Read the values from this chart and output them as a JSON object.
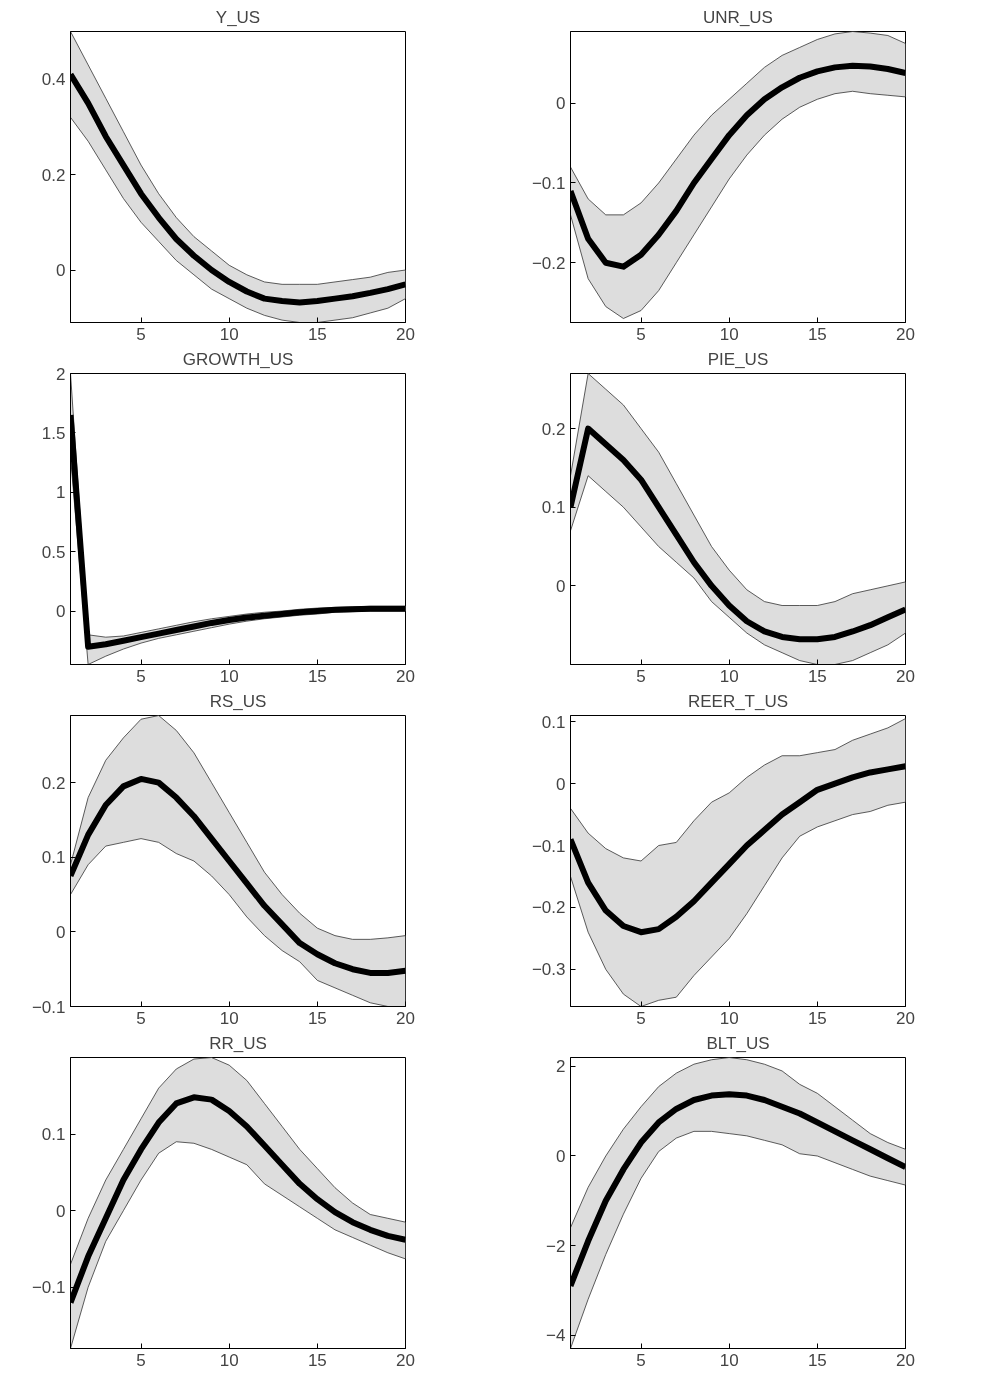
{
  "chart_data": [
    {
      "type": "line",
      "title": "Y_US",
      "x": [
        1,
        2,
        3,
        4,
        5,
        6,
        7,
        8,
        9,
        10,
        11,
        12,
        13,
        14,
        15,
        16,
        17,
        18,
        19,
        20
      ],
      "xlim": [
        1,
        20
      ],
      "xticks": [
        5,
        10,
        15,
        20
      ],
      "ylim": [
        -0.11,
        0.5
      ],
      "yticks": [
        0,
        0.2,
        0.4
      ],
      "grid": false,
      "series": [
        {
          "color": "#000000",
          "values": [
            0.41,
            0.35,
            0.28,
            0.22,
            0.16,
            0.11,
            0.065,
            0.03,
            0.0,
            -0.025,
            -0.045,
            -0.06,
            -0.065,
            -0.068,
            -0.065,
            -0.06,
            -0.055,
            -0.048,
            -0.04,
            -0.03
          ],
          "upper": [
            0.5,
            0.43,
            0.36,
            0.29,
            0.22,
            0.16,
            0.11,
            0.07,
            0.04,
            0.01,
            -0.01,
            -0.025,
            -0.03,
            -0.03,
            -0.03,
            -0.025,
            -0.02,
            -0.015,
            -0.005,
            0.0
          ],
          "lower": [
            0.32,
            0.27,
            0.21,
            0.15,
            0.1,
            0.06,
            0.02,
            -0.01,
            -0.04,
            -0.06,
            -0.08,
            -0.095,
            -0.105,
            -0.11,
            -0.11,
            -0.105,
            -0.1,
            -0.09,
            -0.08,
            -0.06
          ]
        }
      ]
    },
    {
      "type": "line",
      "title": "UNR_US",
      "x": [
        1,
        2,
        3,
        4,
        5,
        6,
        7,
        8,
        9,
        10,
        11,
        12,
        13,
        14,
        15,
        16,
        17,
        18,
        19,
        20
      ],
      "xlim": [
        1,
        20
      ],
      "xticks": [
        5,
        10,
        15,
        20
      ],
      "ylim": [
        -0.275,
        0.09
      ],
      "yticks": [
        -0.2,
        -0.1,
        0
      ],
      "grid": false,
      "series": [
        {
          "color": "#000000",
          "values": [
            -0.11,
            -0.17,
            -0.2,
            -0.205,
            -0.19,
            -0.165,
            -0.135,
            -0.1,
            -0.07,
            -0.04,
            -0.015,
            0.005,
            0.02,
            0.032,
            0.04,
            0.045,
            0.047,
            0.046,
            0.043,
            0.038
          ],
          "upper": [
            -0.08,
            -0.12,
            -0.14,
            -0.14,
            -0.125,
            -0.1,
            -0.07,
            -0.04,
            -0.015,
            0.005,
            0.025,
            0.045,
            0.06,
            0.07,
            0.08,
            0.087,
            0.09,
            0.088,
            0.085,
            0.075
          ],
          "lower": [
            -0.14,
            -0.22,
            -0.255,
            -0.27,
            -0.26,
            -0.235,
            -0.2,
            -0.165,
            -0.13,
            -0.095,
            -0.065,
            -0.04,
            -0.02,
            -0.005,
            0.005,
            0.012,
            0.015,
            0.012,
            0.01,
            0.008
          ]
        }
      ]
    },
    {
      "type": "line",
      "title": "GROWTH_US",
      "x": [
        1,
        2,
        3,
        4,
        5,
        6,
        7,
        8,
        9,
        10,
        11,
        12,
        13,
        14,
        15,
        16,
        17,
        18,
        19,
        20
      ],
      "xlim": [
        1,
        20
      ],
      "xticks": [
        5,
        10,
        15,
        20
      ],
      "ylim": [
        -0.45,
        2
      ],
      "yticks": [
        0,
        0.5,
        1,
        1.5,
        2
      ],
      "grid": false,
      "series": [
        {
          "color": "#000000",
          "values": [
            1.65,
            -0.3,
            -0.28,
            -0.25,
            -0.22,
            -0.19,
            -0.16,
            -0.13,
            -0.1,
            -0.075,
            -0.055,
            -0.04,
            -0.025,
            -0.01,
            0.0,
            0.01,
            0.015,
            0.02,
            0.02,
            0.02
          ],
          "upper": [
            2.0,
            -0.2,
            -0.22,
            -0.21,
            -0.18,
            -0.15,
            -0.12,
            -0.09,
            -0.065,
            -0.045,
            -0.025,
            -0.01,
            0.0,
            0.015,
            0.025,
            0.03,
            0.035,
            0.04,
            0.04,
            0.04
          ],
          "lower": [
            1.3,
            -0.45,
            -0.38,
            -0.32,
            -0.27,
            -0.23,
            -0.2,
            -0.17,
            -0.14,
            -0.11,
            -0.085,
            -0.065,
            -0.05,
            -0.035,
            -0.025,
            -0.01,
            -0.005,
            0.0,
            0.0,
            0.0
          ]
        }
      ]
    },
    {
      "type": "line",
      "title": "PIE_US",
      "x": [
        1,
        2,
        3,
        4,
        5,
        6,
        7,
        8,
        9,
        10,
        11,
        12,
        13,
        14,
        15,
        16,
        17,
        18,
        19,
        20
      ],
      "xlim": [
        1,
        20
      ],
      "xticks": [
        5,
        10,
        15,
        20
      ],
      "ylim": [
        -0.1,
        0.27
      ],
      "yticks": [
        0,
        0.1,
        0.2
      ],
      "grid": false,
      "series": [
        {
          "color": "#000000",
          "values": [
            0.1,
            0.2,
            0.18,
            0.16,
            0.135,
            0.1,
            0.065,
            0.03,
            0.0,
            -0.025,
            -0.045,
            -0.058,
            -0.065,
            -0.068,
            -0.068,
            -0.065,
            -0.058,
            -0.05,
            -0.04,
            -0.03
          ],
          "upper": [
            0.14,
            0.27,
            0.25,
            0.23,
            0.2,
            0.17,
            0.13,
            0.09,
            0.05,
            0.02,
            -0.005,
            -0.02,
            -0.025,
            -0.025,
            -0.025,
            -0.02,
            -0.01,
            -0.005,
            0.0,
            0.005
          ],
          "lower": [
            0.07,
            0.14,
            0.12,
            0.1,
            0.075,
            0.05,
            0.03,
            0.01,
            -0.02,
            -0.04,
            -0.06,
            -0.075,
            -0.085,
            -0.095,
            -0.1,
            -0.1,
            -0.095,
            -0.085,
            -0.075,
            -0.06
          ]
        }
      ]
    },
    {
      "type": "line",
      "title": "RS_US",
      "x": [
        1,
        2,
        3,
        4,
        5,
        6,
        7,
        8,
        9,
        10,
        11,
        12,
        13,
        14,
        15,
        16,
        17,
        18,
        19,
        20
      ],
      "xlim": [
        1,
        20
      ],
      "xticks": [
        5,
        10,
        15,
        20
      ],
      "ylim": [
        -0.1,
        0.29
      ],
      "yticks": [
        -0.1,
        0,
        0.1,
        0.2
      ],
      "grid": false,
      "series": [
        {
          "color": "#000000",
          "values": [
            0.075,
            0.13,
            0.17,
            0.195,
            0.205,
            0.2,
            0.18,
            0.155,
            0.125,
            0.095,
            0.065,
            0.035,
            0.01,
            -0.015,
            -0.03,
            -0.042,
            -0.05,
            -0.055,
            -0.055,
            -0.052
          ],
          "upper": [
            0.09,
            0.18,
            0.23,
            0.26,
            0.285,
            0.29,
            0.27,
            0.24,
            0.2,
            0.16,
            0.12,
            0.08,
            0.05,
            0.025,
            0.005,
            -0.005,
            -0.01,
            -0.01,
            -0.008,
            -0.005
          ],
          "lower": [
            0.05,
            0.09,
            0.115,
            0.12,
            0.125,
            0.12,
            0.105,
            0.095,
            0.075,
            0.05,
            0.02,
            -0.005,
            -0.025,
            -0.04,
            -0.065,
            -0.075,
            -0.085,
            -0.095,
            -0.1,
            -0.1
          ]
        }
      ]
    },
    {
      "type": "line",
      "title": "REER_T_US",
      "x": [
        1,
        2,
        3,
        4,
        5,
        6,
        7,
        8,
        9,
        10,
        11,
        12,
        13,
        14,
        15,
        16,
        17,
        18,
        19,
        20
      ],
      "xlim": [
        1,
        20
      ],
      "xticks": [
        5,
        10,
        15,
        20
      ],
      "ylim": [
        -0.36,
        0.11
      ],
      "yticks": [
        -0.3,
        -0.2,
        -0.1,
        0,
        0.1
      ],
      "grid": false,
      "series": [
        {
          "color": "#000000",
          "values": [
            -0.09,
            -0.16,
            -0.205,
            -0.23,
            -0.24,
            -0.235,
            -0.215,
            -0.19,
            -0.16,
            -0.13,
            -0.1,
            -0.075,
            -0.05,
            -0.03,
            -0.01,
            0.0,
            0.01,
            0.018,
            0.023,
            0.028
          ],
          "upper": [
            -0.04,
            -0.08,
            -0.105,
            -0.12,
            -0.125,
            -0.1,
            -0.095,
            -0.06,
            -0.03,
            -0.015,
            0.01,
            0.03,
            0.045,
            0.045,
            0.05,
            0.055,
            0.07,
            0.08,
            0.09,
            0.105
          ],
          "lower": [
            -0.15,
            -0.24,
            -0.3,
            -0.34,
            -0.36,
            -0.35,
            -0.345,
            -0.31,
            -0.28,
            -0.25,
            -0.21,
            -0.165,
            -0.12,
            -0.085,
            -0.07,
            -0.06,
            -0.05,
            -0.045,
            -0.035,
            -0.03
          ]
        }
      ]
    },
    {
      "type": "line",
      "title": "RR_US",
      "x": [
        1,
        2,
        3,
        4,
        5,
        6,
        7,
        8,
        9,
        10,
        11,
        12,
        13,
        14,
        15,
        16,
        17,
        18,
        19,
        20
      ],
      "xlim": [
        1,
        20
      ],
      "xticks": [
        5,
        10,
        15,
        20
      ],
      "ylim": [
        -0.18,
        0.2
      ],
      "yticks": [
        -0.1,
        0,
        0.1
      ],
      "grid": false,
      "series": [
        {
          "color": "#000000",
          "values": [
            -0.12,
            -0.06,
            -0.01,
            0.04,
            0.08,
            0.115,
            0.14,
            0.148,
            0.145,
            0.13,
            0.11,
            0.085,
            0.06,
            0.035,
            0.015,
            -0.002,
            -0.015,
            -0.025,
            -0.033,
            -0.038
          ],
          "upper": [
            -0.07,
            -0.01,
            0.04,
            0.08,
            0.12,
            0.16,
            0.185,
            0.198,
            0.2,
            0.19,
            0.17,
            0.14,
            0.11,
            0.08,
            0.055,
            0.03,
            0.01,
            -0.005,
            -0.01,
            -0.015
          ],
          "lower": [
            -0.18,
            -0.1,
            -0.04,
            0.0,
            0.04,
            0.075,
            0.09,
            0.088,
            0.08,
            0.07,
            0.06,
            0.035,
            0.02,
            0.005,
            -0.01,
            -0.025,
            -0.035,
            -0.045,
            -0.055,
            -0.063
          ]
        }
      ]
    },
    {
      "type": "line",
      "title": "BLT_US",
      "x": [
        1,
        2,
        3,
        4,
        5,
        6,
        7,
        8,
        9,
        10,
        11,
        12,
        13,
        14,
        15,
        16,
        17,
        18,
        19,
        20
      ],
      "xlim": [
        1,
        20
      ],
      "xticks": [
        5,
        10,
        15,
        20
      ],
      "ylim": [
        -4.3,
        2.2
      ],
      "yticks": [
        -4,
        -2,
        0,
        2
      ],
      "grid": false,
      "series": [
        {
          "color": "#000000",
          "values": [
            -2.9,
            -1.9,
            -1.0,
            -0.3,
            0.3,
            0.75,
            1.05,
            1.25,
            1.35,
            1.38,
            1.35,
            1.25,
            1.1,
            0.95,
            0.75,
            0.55,
            0.35,
            0.15,
            -0.05,
            -0.25
          ],
          "upper": [
            -1.6,
            -0.7,
            0.0,
            0.6,
            1.1,
            1.55,
            1.85,
            2.05,
            2.15,
            2.2,
            2.15,
            2.05,
            1.9,
            1.6,
            1.4,
            1.1,
            0.8,
            0.5,
            0.3,
            0.15
          ],
          "lower": [
            -4.3,
            -3.2,
            -2.2,
            -1.3,
            -0.5,
            0.1,
            0.4,
            0.55,
            0.55,
            0.5,
            0.45,
            0.35,
            0.25,
            0.05,
            0.0,
            -0.15,
            -0.3,
            -0.45,
            -0.55,
            -0.65
          ]
        }
      ]
    }
  ]
}
